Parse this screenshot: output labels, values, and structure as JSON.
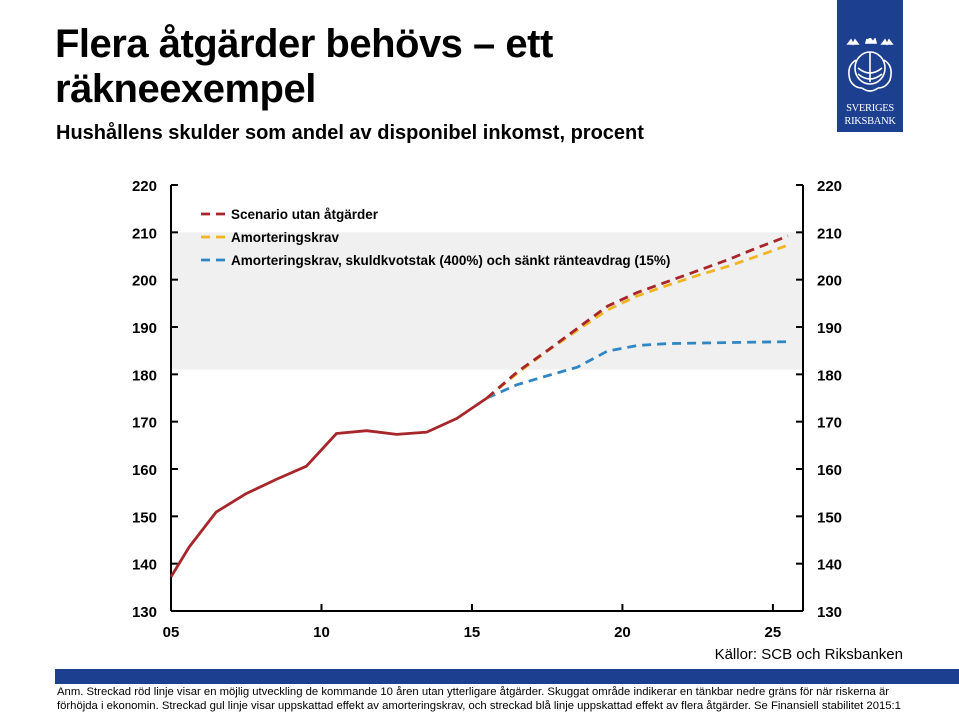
{
  "header": {
    "title": "Flera åtgärder behövs – ett räkneexempel",
    "subtitle": "Hushållens skulder som andel av disponibel inkomst, procent"
  },
  "logo": {
    "line1": "SVERIGES",
    "line2": "RIKSBANK",
    "background": "#1d3f8f"
  },
  "chart_data": {
    "type": "line",
    "x_ticks": [
      "05",
      "10",
      "15",
      "20",
      "25"
    ],
    "x_tick_values": [
      2005,
      2010,
      2015,
      2020,
      2025
    ],
    "xlim": [
      2005,
      2026
    ],
    "ylim": [
      130,
      220
    ],
    "y_ticks": [
      130,
      140,
      150,
      160,
      170,
      180,
      190,
      200,
      210,
      220
    ],
    "shaded_band": [
      181,
      210
    ],
    "grid": false,
    "legend_position": "top-left",
    "series": [
      {
        "key": "historical",
        "color": "#a6262b",
        "style": "solid",
        "points": [
          [
            2005.0,
            137.2
          ],
          [
            2005.6,
            143.5
          ],
          [
            2006.5,
            150.9
          ],
          [
            2007.5,
            154.8
          ],
          [
            2008.5,
            157.8
          ],
          [
            2009.5,
            160.6
          ],
          [
            2010.5,
            167.5
          ],
          [
            2011.5,
            168.1
          ],
          [
            2012.5,
            167.3
          ],
          [
            2013.5,
            167.8
          ],
          [
            2014.5,
            170.7
          ],
          [
            2015.5,
            175.0
          ]
        ]
      },
      {
        "name": "Scenario utan åtgärder",
        "color": "#a6262b",
        "style": "dashed",
        "points": [
          [
            2015.5,
            175.0
          ],
          [
            2016.5,
            180.5
          ],
          [
            2017.5,
            185.0
          ],
          [
            2018.5,
            189.7
          ],
          [
            2019.5,
            194.4
          ],
          [
            2020.5,
            197.3
          ],
          [
            2021.5,
            199.6
          ],
          [
            2022.5,
            201.9
          ],
          [
            2023.5,
            204.2
          ],
          [
            2024.5,
            206.8
          ],
          [
            2025.5,
            209.2
          ]
        ]
      },
      {
        "name": "Amorteringskrav",
        "color": "#f0b523",
        "style": "dashed",
        "points": [
          [
            2015.5,
            175.0
          ],
          [
            2016.5,
            180.2
          ],
          [
            2017.5,
            184.9
          ],
          [
            2018.5,
            189.3
          ],
          [
            2019.5,
            193.6
          ],
          [
            2020.5,
            196.6
          ],
          [
            2021.5,
            198.8
          ],
          [
            2022.5,
            200.9
          ],
          [
            2023.5,
            202.8
          ],
          [
            2024.5,
            205.0
          ],
          [
            2025.5,
            207.3
          ]
        ]
      },
      {
        "name": "Amorteringskrav, skuldkvotstak (400%) och sänkt ränteavdrag (15%)",
        "color": "#2f86c3",
        "style": "dashed",
        "points": [
          [
            2015.5,
            175.0
          ],
          [
            2016.5,
            177.8
          ],
          [
            2017.5,
            179.7
          ],
          [
            2018.5,
            181.5
          ],
          [
            2019.5,
            184.9
          ],
          [
            2020.5,
            186.1
          ],
          [
            2021.5,
            186.5
          ],
          [
            2022.5,
            186.6
          ],
          [
            2023.5,
            186.7
          ],
          [
            2024.5,
            186.8
          ],
          [
            2025.5,
            186.9
          ]
        ]
      }
    ]
  },
  "footer": {
    "sources": "Källor: SCB och Riksbanken",
    "note": "Anm. Streckad röd linje visar en möjlig utveckling de kommande 10 åren utan ytterligare åtgärder. Skuggat område indikerar en tänkbar nedre gräns för när riskerna är\nförhöjda i ekonomin.  Streckad gul linje visar uppskattad effekt av amorteringskrav,  och streckad blå linje uppskattad effekt av flera åtgärder. Se Finansiell stabilitet 2015:1",
    "bar_color": "#1d3f8f"
  }
}
